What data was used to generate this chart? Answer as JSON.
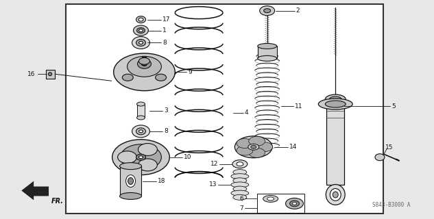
{
  "bg_color": "#e8e8e8",
  "box_color": "white",
  "lc": "#111111",
  "fig_width": 6.33,
  "fig_height": 3.2,
  "dpi": 100,
  "watermark": "S843-B3000 A",
  "fr_label": "FR."
}
